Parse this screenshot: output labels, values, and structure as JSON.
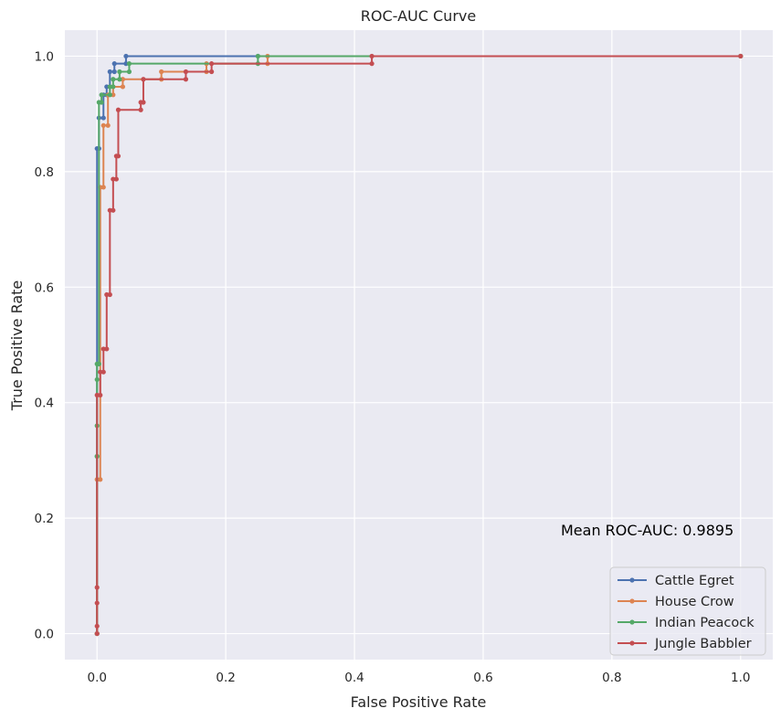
{
  "chart_data": {
    "type": "line",
    "title": "ROC-AUC Curve",
    "xlabel": "False Positive Rate",
    "ylabel": "True Positive Rate",
    "xlim": [
      -0.05,
      1.05
    ],
    "ylim": [
      -0.045,
      1.045
    ],
    "xticks": [
      0.0,
      0.2,
      0.4,
      0.6,
      0.8,
      1.0
    ],
    "yticks": [
      0.0,
      0.2,
      0.4,
      0.6,
      0.8,
      1.0
    ],
    "xtick_labels": [
      "0.0",
      "0.2",
      "0.4",
      "0.6",
      "0.8",
      "1.0"
    ],
    "ytick_labels": [
      "0.0",
      "0.2",
      "0.4",
      "0.6",
      "0.8",
      "1.0"
    ],
    "grid": true,
    "legend_position": "lower-right",
    "annotation": "Mean ROC-AUC: 0.9895",
    "series": [
      {
        "name": "Cattle Egret",
        "color": "#4c72b0",
        "points": [
          [
            0,
            0
          ],
          [
            0,
            0.84
          ],
          [
            0.003,
            0.84
          ],
          [
            0.003,
            0.893
          ],
          [
            0.01,
            0.893
          ],
          [
            0.01,
            0.933
          ],
          [
            0.015,
            0.933
          ],
          [
            0.015,
            0.947
          ],
          [
            0.02,
            0.947
          ],
          [
            0.02,
            0.973
          ],
          [
            0.027,
            0.973
          ],
          [
            0.027,
            0.987
          ],
          [
            0.045,
            0.987
          ],
          [
            0.045,
            1.0
          ],
          [
            0.25,
            1.0
          ],
          [
            1.0,
            1.0
          ]
        ]
      },
      {
        "name": "House Crow",
        "color": "#dd8452",
        "points": [
          [
            0,
            0
          ],
          [
            0,
            0.267
          ],
          [
            0.005,
            0.267
          ],
          [
            0.005,
            0.773
          ],
          [
            0.01,
            0.773
          ],
          [
            0.01,
            0.88
          ],
          [
            0.017,
            0.88
          ],
          [
            0.017,
            0.933
          ],
          [
            0.025,
            0.933
          ],
          [
            0.025,
            0.947
          ],
          [
            0.04,
            0.947
          ],
          [
            0.04,
            0.96
          ],
          [
            0.1,
            0.96
          ],
          [
            0.1,
            0.973
          ],
          [
            0.17,
            0.973
          ],
          [
            0.17,
            0.987
          ],
          [
            0.265,
            0.987
          ],
          [
            0.265,
            1.0
          ],
          [
            1.0,
            1.0
          ]
        ]
      },
      {
        "name": "Indian Peacock",
        "color": "#55a868",
        "points": [
          [
            0,
            0
          ],
          [
            0,
            0.307
          ],
          [
            0.0,
            0.307
          ],
          [
            0.0,
            0.36
          ],
          [
            0.0,
            0.44
          ],
          [
            0.0,
            0.467
          ],
          [
            0.003,
            0.467
          ],
          [
            0.003,
            0.92
          ],
          [
            0.007,
            0.92
          ],
          [
            0.007,
            0.933
          ],
          [
            0.02,
            0.933
          ],
          [
            0.02,
            0.947
          ],
          [
            0.025,
            0.947
          ],
          [
            0.025,
            0.96
          ],
          [
            0.035,
            0.96
          ],
          [
            0.035,
            0.973
          ],
          [
            0.05,
            0.973
          ],
          [
            0.05,
            0.987
          ],
          [
            0.25,
            0.987
          ],
          [
            0.25,
            1.0
          ],
          [
            1.0,
            1.0
          ]
        ]
      },
      {
        "name": "Jungle Babbler",
        "color": "#c44e52",
        "points": [
          [
            0,
            0
          ],
          [
            0,
            0.013
          ],
          [
            0,
            0.053
          ],
          [
            0,
            0.08
          ],
          [
            0,
            0.413
          ],
          [
            0.005,
            0.413
          ],
          [
            0.005,
            0.453
          ],
          [
            0.01,
            0.453
          ],
          [
            0.01,
            0.493
          ],
          [
            0.015,
            0.493
          ],
          [
            0.015,
            0.587
          ],
          [
            0.02,
            0.587
          ],
          [
            0.02,
            0.733
          ],
          [
            0.025,
            0.733
          ],
          [
            0.025,
            0.787
          ],
          [
            0.03,
            0.787
          ],
          [
            0.03,
            0.827
          ],
          [
            0.033,
            0.827
          ],
          [
            0.033,
            0.907
          ],
          [
            0.068,
            0.907
          ],
          [
            0.068,
            0.92
          ],
          [
            0.072,
            0.92
          ],
          [
            0.072,
            0.96
          ],
          [
            0.138,
            0.96
          ],
          [
            0.138,
            0.973
          ],
          [
            0.178,
            0.973
          ],
          [
            0.178,
            0.987
          ],
          [
            0.427,
            0.987
          ],
          [
            0.427,
            1.0
          ],
          [
            1.0,
            1.0
          ]
        ]
      }
    ]
  }
}
